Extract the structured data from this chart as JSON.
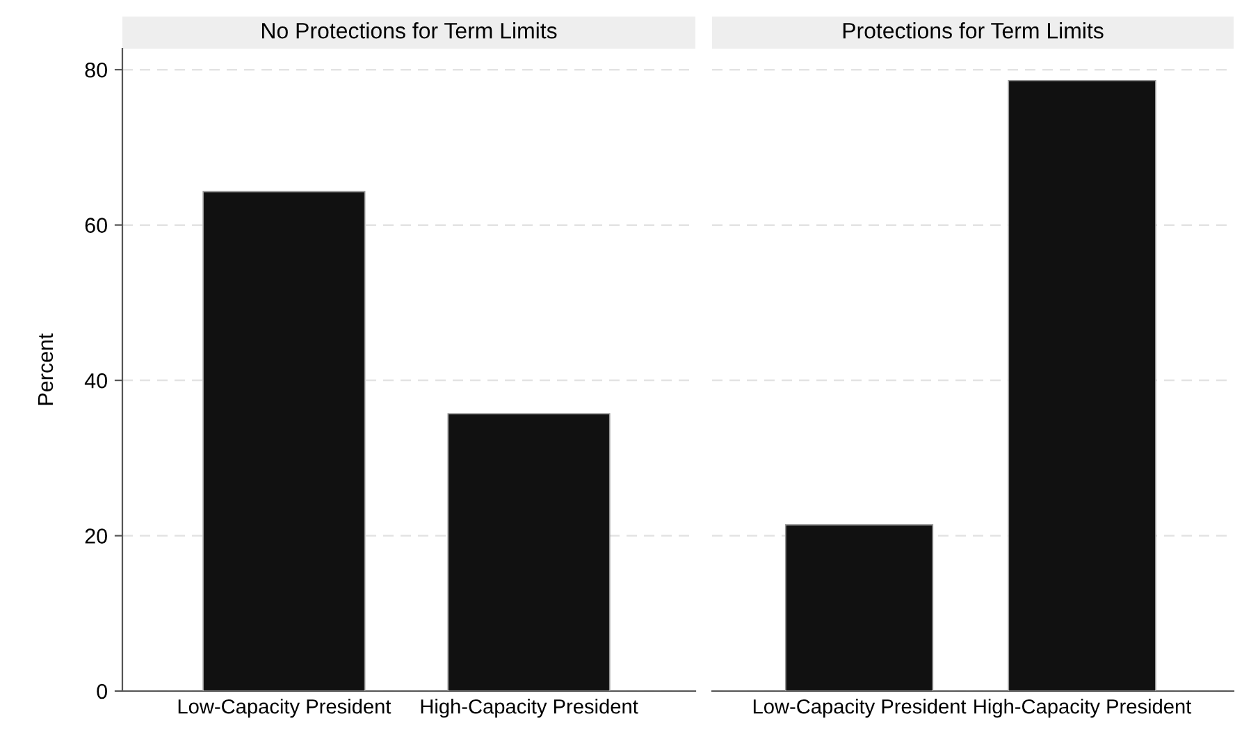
{
  "chart_data": [
    {
      "type": "bar",
      "title": "No Protections for Term Limits",
      "ylabel": "Percent",
      "categories": [
        "Low-Capacity President",
        "High-Capacity President"
      ],
      "values": [
        64.3,
        35.7
      ],
      "color": "#111111",
      "ylim": [
        0,
        82.7
      ],
      "yticks": [
        0,
        20,
        40,
        60,
        80
      ],
      "grid": "y"
    },
    {
      "type": "bar",
      "title": "Protections for Term Limits",
      "categories": [
        "Low-Capacity President",
        "High-Capacity President"
      ],
      "values": [
        21.4,
        78.6
      ],
      "color": "#111111",
      "yticks": [
        0,
        20,
        40,
        60,
        80
      ],
      "grid": "y",
      "tick_labels": "x"
    }
  ]
}
